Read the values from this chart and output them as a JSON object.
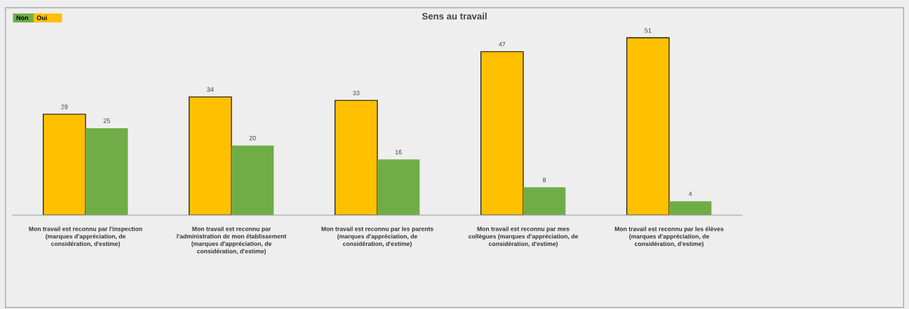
{
  "chart_data": {
    "type": "bar",
    "title": "Sens au travail",
    "categories": [
      "Mon travail est reconnu par l'inspection (marques d'appréciation, de considération, d'estime)",
      "Mon travail est reconnu par l'administration de mon établissement (marques d'appréciation, de considération, d'estime)",
      "Mon travail est reconnu par les parents (marques d'appréciation, de considération, d'estime)",
      "Mon travail est reconnu par mes collègues (marques d'appréciation, de considération, d'estime)",
      "Mon travail est reconnu par les élèves (marques d'appréciation, de considération, d'estime)"
    ],
    "series": [
      {
        "name": "Oui",
        "color": "#ffc000",
        "values": [
          29,
          34,
          33,
          47,
          51
        ]
      },
      {
        "name": "Non",
        "color": "#70ad47",
        "values": [
          25,
          20,
          16,
          8,
          4
        ]
      }
    ],
    "data_labels": true,
    "legend": "top left"
  }
}
